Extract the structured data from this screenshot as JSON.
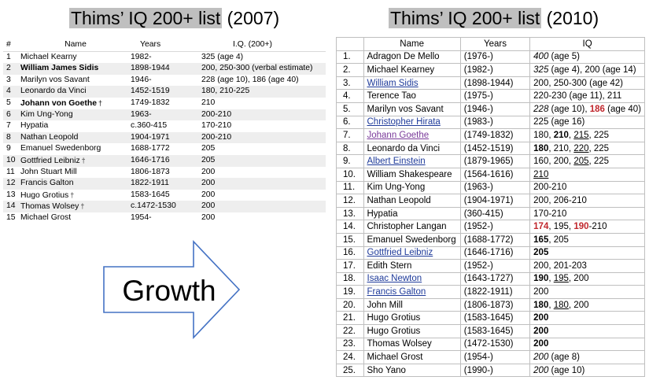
{
  "titles": {
    "left_main": "Thims’ IQ 200+ list",
    "left_year": "(2007)",
    "right_main": "Thims’ IQ 200+ list",
    "right_year": "(2010)"
  },
  "arrow": {
    "label": "Growth"
  },
  "list_2007": {
    "headers": {
      "num": "#",
      "name": "Name",
      "years": "Years",
      "iq": "I.Q. (200+)"
    },
    "rows": [
      {
        "num": "1",
        "name": "Michael Kearny",
        "years": "1982-",
        "iq": "325 (age 4)"
      },
      {
        "num": "2",
        "name": "William James Sidis",
        "years": "1898-1944",
        "iq": "200, 250-300 (verbal estimate)",
        "bold": true
      },
      {
        "num": "3",
        "name": "Marilyn vos Savant",
        "years": "1946-",
        "iq": "228 (age 10), 186 (age 40)"
      },
      {
        "num": "4",
        "name": "Leonardo da Vinci",
        "years": "1452-1519",
        "iq": "180, 210-225"
      },
      {
        "num": "5",
        "name": "Johann von Goethe",
        "years": "1749-1832",
        "iq": "210",
        "bold": true,
        "mark": true
      },
      {
        "num": "6",
        "name": "Kim Ung-Yong",
        "years": "1963-",
        "iq": "200-210"
      },
      {
        "num": "7",
        "name": "Hypatia",
        "years": "c.360-415",
        "iq": "170-210"
      },
      {
        "num": "8",
        "name": "Nathan Leopold",
        "years": "1904-1971",
        "iq": "200-210"
      },
      {
        "num": "9",
        "name": "Emanuel Swedenborg",
        "years": "1688-1772",
        "iq": "205"
      },
      {
        "num": "10",
        "name": "Gottfried Leibniz",
        "years": "1646-1716",
        "iq": "205",
        "mark": true
      },
      {
        "num": "11",
        "name": "John Stuart Mill",
        "years": "1806-1873",
        "iq": "200"
      },
      {
        "num": "12",
        "name": "Francis Galton",
        "years": "1822-1911",
        "iq": "200"
      },
      {
        "num": "13",
        "name": "Hugo Grotius",
        "years": "1583-1645",
        "iq": "200",
        "mark": true
      },
      {
        "num": "14",
        "name": "Thomas Wolsey",
        "years": "c.1472-1530",
        "iq": "200",
        "mark": true
      },
      {
        "num": "15",
        "name": "Michael Grost",
        "years": "1954-",
        "iq": "200"
      }
    ]
  },
  "list_2010": {
    "headers": {
      "num": "",
      "name": "Name",
      "years": "Years",
      "iq": "IQ"
    },
    "rows": [
      {
        "num": "1.",
        "name": "Adragon De Mello",
        "years": "(1976-)",
        "iq": [
          {
            "t": "400",
            "s": "it"
          },
          {
            "t": " (age 5)"
          }
        ]
      },
      {
        "num": "2.",
        "name": "Michael Kearney",
        "years": "(1982-)",
        "iq": [
          {
            "t": "325",
            "s": "it"
          },
          {
            "t": " (age 4), 200 (age 14)"
          }
        ]
      },
      {
        "num": "3.",
        "name": "William Sidis",
        "link": true,
        "years": "(1898-1944)",
        "iq": [
          {
            "t": "200, 250-300 (age 42)"
          }
        ]
      },
      {
        "num": "4.",
        "name": "Terence Tao",
        "years": "(1975-)",
        "iq": [
          {
            "t": "220-230 (age 11), 211"
          }
        ]
      },
      {
        "num": "5.",
        "name": "Marilyn vos Savant",
        "years": "(1946-)",
        "iq": [
          {
            "t": "228",
            "s": "it"
          },
          {
            "t": " (age 10), "
          },
          {
            "t": "186",
            "s": "red"
          },
          {
            "t": " (age 40)"
          }
        ]
      },
      {
        "num": "6.",
        "name": "Christopher Hirata",
        "link": true,
        "years": "(1983-)",
        "iq": [
          {
            "t": "225 (age 16)"
          }
        ]
      },
      {
        "num": "7.",
        "name": "Johann Goethe",
        "link": true,
        "visited": true,
        "years": "(1749-1832)",
        "iq": [
          {
            "t": "180, "
          },
          {
            "t": "210",
            "s": "bd"
          },
          {
            "t": ", "
          },
          {
            "t": "215",
            "s": "ul"
          },
          {
            "t": ", 225"
          }
        ]
      },
      {
        "num": "8.",
        "name": "Leonardo da Vinci",
        "years": "(1452-1519)",
        "iq": [
          {
            "t": "180",
            "s": "bd"
          },
          {
            "t": ", 210, "
          },
          {
            "t": "220",
            "s": "ul"
          },
          {
            "t": ", 225"
          }
        ]
      },
      {
        "num": "9.",
        "name": "Albert Einstein",
        "link": true,
        "years": "(1879-1965)",
        "iq": [
          {
            "t": "160, 200, "
          },
          {
            "t": "205",
            "s": "ul"
          },
          {
            "t": ", 225"
          }
        ]
      },
      {
        "num": "10.",
        "name": "William Shakespeare",
        "years": "(1564-1616)",
        "iq": [
          {
            "t": "210",
            "s": "ul"
          }
        ]
      },
      {
        "num": "11.",
        "name": "Kim Ung-Yong",
        "years": "(1963-)",
        "iq": [
          {
            "t": "200-210"
          }
        ]
      },
      {
        "num": "12.",
        "name": "Nathan Leopold",
        "years": "(1904-1971)",
        "iq": [
          {
            "t": "200, 206-210"
          }
        ]
      },
      {
        "num": "13.",
        "name": "Hypatia",
        "years": "(360-415)",
        "iq": [
          {
            "t": "170-210"
          }
        ]
      },
      {
        "num": "14.",
        "name": "Christopher Langan",
        "years": "(1952-)",
        "iq": [
          {
            "t": "174",
            "s": "red"
          },
          {
            "t": ", 195, "
          },
          {
            "t": "190",
            "s": "red"
          },
          {
            "t": "-210"
          }
        ]
      },
      {
        "num": "15.",
        "name": "Emanuel Swedenborg",
        "years": "(1688-1772)",
        "iq": [
          {
            "t": "165",
            "s": "bd"
          },
          {
            "t": ", 205"
          }
        ]
      },
      {
        "num": "16.",
        "name": "Gottfried Leibniz",
        "link": true,
        "years": "(1646-1716)",
        "iq": [
          {
            "t": "205",
            "s": "bd"
          }
        ]
      },
      {
        "num": "17.",
        "name": "Edith Stern",
        "years": "(1952-)",
        "iq": [
          {
            "t": "200, 201-203"
          }
        ]
      },
      {
        "num": "18.",
        "name": "Isaac Newton",
        "link": true,
        "years": "(1643-1727)",
        "iq": [
          {
            "t": "190",
            "s": "bd"
          },
          {
            "t": ", "
          },
          {
            "t": "195",
            "s": "ul"
          },
          {
            "t": ", 200"
          }
        ]
      },
      {
        "num": "19.",
        "name": "Francis Galton",
        "link": true,
        "years": "(1822-1911)",
        "iq": [
          {
            "t": "200"
          }
        ]
      },
      {
        "num": "20.",
        "name": "John Mill",
        "years": "(1806-1873)",
        "iq": [
          {
            "t": "180",
            "s": "bd"
          },
          {
            "t": ", "
          },
          {
            "t": "180",
            "s": "ul"
          },
          {
            "t": ", 200"
          }
        ]
      },
      {
        "num": "21.",
        "name": "Hugo Grotius",
        "years": "(1583-1645)",
        "iq": [
          {
            "t": "200",
            "s": "bd"
          }
        ]
      },
      {
        "num": "22.",
        "name": "Hugo Grotius",
        "years": "(1583-1645)",
        "iq": [
          {
            "t": "200",
            "s": "bd"
          }
        ]
      },
      {
        "num": "23.",
        "name": "Thomas Wolsey",
        "years": "(1472-1530)",
        "iq": [
          {
            "t": "200",
            "s": "bd"
          }
        ]
      },
      {
        "num": "24.",
        "name": "Michael Grost",
        "years": "(1954-)",
        "iq": [
          {
            "t": "200",
            "s": "it"
          },
          {
            "t": " (age 8)"
          }
        ]
      },
      {
        "num": "25.",
        "name": "Sho Yano",
        "years": "(1990-)",
        "iq": [
          {
            "t": "200",
            "s": "it"
          },
          {
            "t": " (age 10)"
          }
        ]
      }
    ]
  }
}
